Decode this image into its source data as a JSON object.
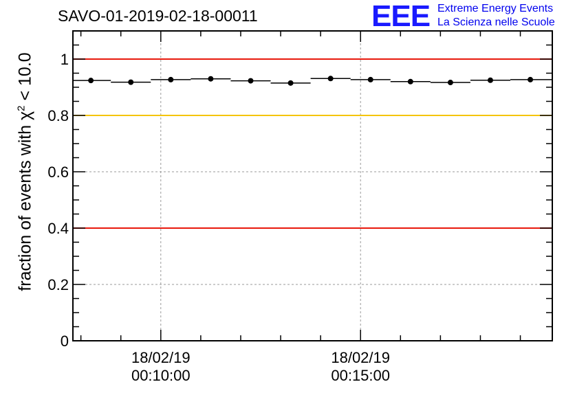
{
  "header": {
    "title": "SAVO-01-2019-02-18-00011",
    "logo_letters": "EEE",
    "logo_line1": "Extreme Energy Events",
    "logo_line2": "La Scienza nelle Scuole"
  },
  "colors": {
    "red_line": "#e8180c",
    "yellow_line": "#f5c400",
    "marker": "#000000",
    "grid": "#9a9a9a",
    "logo": "#1a1aff"
  },
  "chart_data": {
    "type": "scatter",
    "title": "SAVO-01-2019-02-18-00011",
    "xlabel": "",
    "ylabel_prefix": "fraction of events with",
    "ylabel_symbol": "χ",
    "ylabel_exponent": "2",
    "ylabel_suffix": " < 10.0",
    "ylim": [
      0,
      1.1
    ],
    "xlim_minutes": [
      7.8,
      19.8
    ],
    "yticks": [
      {
        "value": 0,
        "label": "0"
      },
      {
        "value": 0.2,
        "label": "0.2"
      },
      {
        "value": 0.4,
        "label": "0.4"
      },
      {
        "value": 0.6,
        "label": "0.6"
      },
      {
        "value": 0.8,
        "label": "0.8"
      },
      {
        "value": 1,
        "label": "1"
      }
    ],
    "xticks": [
      {
        "minutes": 10,
        "date": "18/02/19",
        "time": "00:10:00"
      },
      {
        "minutes": 15,
        "date": "18/02/19",
        "time": "00:15:00"
      }
    ],
    "reference_lines": [
      {
        "y": 1.0,
        "color": "red"
      },
      {
        "y": 0.8,
        "color": "yellow"
      },
      {
        "y": 0.4,
        "color": "red"
      }
    ],
    "points": [
      {
        "x": 8.25,
        "y": 0.924
      },
      {
        "x": 9.25,
        "y": 0.918
      },
      {
        "x": 10.25,
        "y": 0.927
      },
      {
        "x": 11.25,
        "y": 0.93
      },
      {
        "x": 12.25,
        "y": 0.923
      },
      {
        "x": 13.25,
        "y": 0.915
      },
      {
        "x": 14.25,
        "y": 0.931
      },
      {
        "x": 15.25,
        "y": 0.927
      },
      {
        "x": 16.25,
        "y": 0.92
      },
      {
        "x": 17.25,
        "y": 0.917
      },
      {
        "x": 18.25,
        "y": 0.925
      },
      {
        "x": 19.25,
        "y": 0.927
      }
    ],
    "bin_width_minutes": 1.0,
    "last_bin_right_edge_minutes": 19.8,
    "grid": true
  }
}
